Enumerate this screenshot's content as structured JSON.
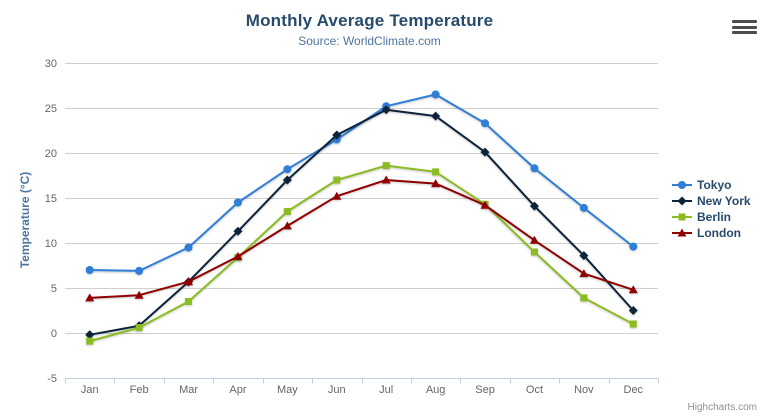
{
  "chart": {
    "title": "Monthly Average Temperature",
    "subtitle": "Source: WorldClimate.com",
    "y_axis_title": "Temperature (°C)",
    "credits": "Highcharts.com",
    "export_icon": "hamburger-menu-icon"
  },
  "colors": {
    "title_text": "#274b6d",
    "subtitle_text": "#4d759e",
    "axis_label_text": "#666666",
    "gridline": "#cfcfcf",
    "axis_line": "#c0d0e0",
    "legend_text": "#274b6d",
    "credits_text": "#909090"
  },
  "chart_data": {
    "type": "line",
    "title": "Monthly Average Temperature",
    "subtitle": "Source: WorldClimate.com",
    "xlabel": "",
    "ylabel": "Temperature (°C)",
    "ylim": [
      -5,
      30
    ],
    "ytick_step": 5,
    "yticks": [
      -5,
      0,
      5,
      10,
      15,
      20,
      25,
      30
    ],
    "grid": true,
    "legend_position": "right",
    "categories": [
      "Jan",
      "Feb",
      "Mar",
      "Apr",
      "May",
      "Jun",
      "Jul",
      "Aug",
      "Sep",
      "Oct",
      "Nov",
      "Dec"
    ],
    "series": [
      {
        "name": "Tokyo",
        "color": "#2f7ed8",
        "marker": "circle",
        "values": [
          7.0,
          6.9,
          9.5,
          14.5,
          18.2,
          21.5,
          25.2,
          26.5,
          23.3,
          18.3,
          13.9,
          9.6
        ]
      },
      {
        "name": "New York",
        "color": "#0d233a",
        "marker": "diamond",
        "values": [
          -0.2,
          0.8,
          5.7,
          11.3,
          17.0,
          22.0,
          24.8,
          24.1,
          20.1,
          14.1,
          8.6,
          2.5
        ]
      },
      {
        "name": "Berlin",
        "color": "#8bbc21",
        "marker": "square",
        "values": [
          -0.9,
          0.6,
          3.5,
          8.4,
          13.5,
          17.0,
          18.6,
          17.9,
          14.3,
          9.0,
          3.9,
          1.0
        ]
      },
      {
        "name": "London",
        "color": "#910000",
        "marker": "triangle",
        "values": [
          3.9,
          4.2,
          5.7,
          8.5,
          11.9,
          15.2,
          17.0,
          16.6,
          14.2,
          10.3,
          6.6,
          4.8
        ]
      }
    ]
  }
}
